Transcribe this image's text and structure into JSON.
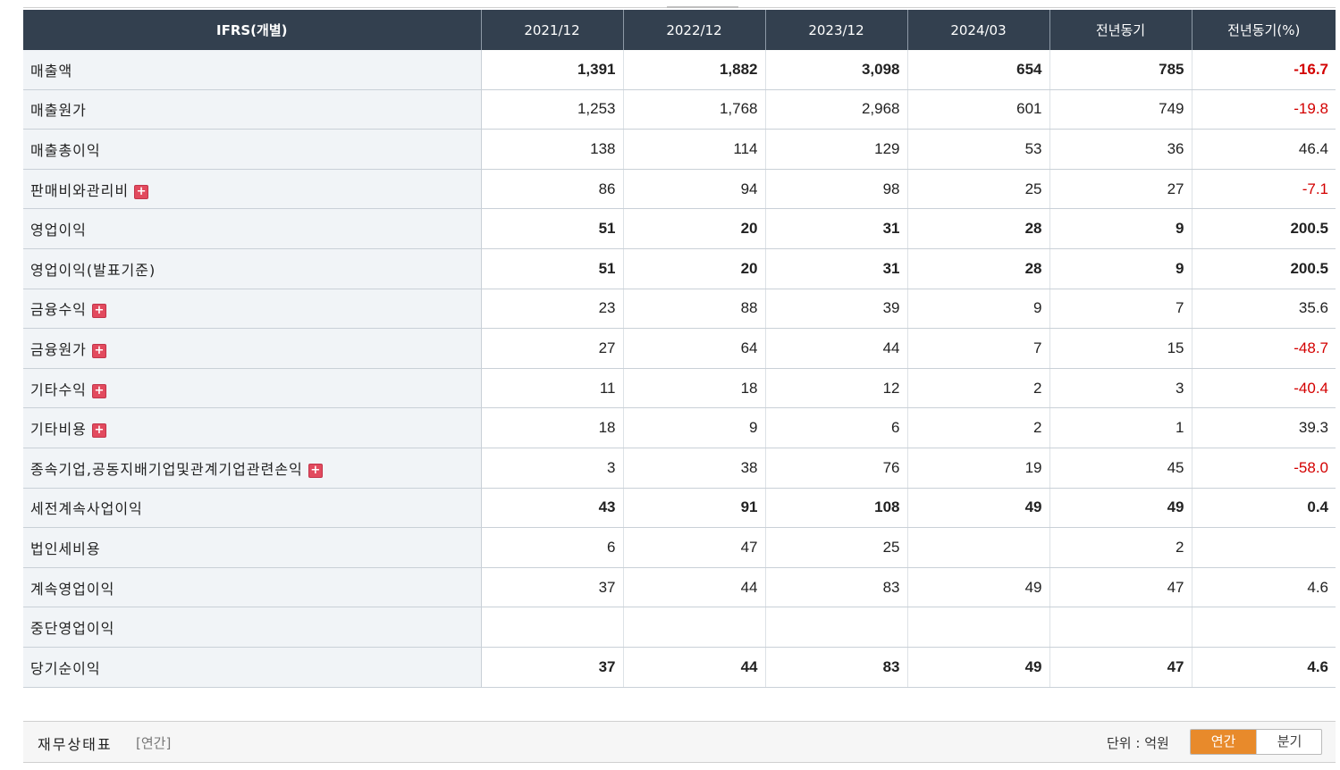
{
  "table": {
    "headers": [
      "IFRS(개별)",
      "2021/12",
      "2022/12",
      "2023/12",
      "2024/03",
      "전년동기",
      "전년동기(%)"
    ],
    "rows": [
      {
        "label": "매출액",
        "bold": true,
        "expand": false,
        "values": [
          "1,391",
          "1,882",
          "3,098",
          "654",
          "785",
          "-16.7"
        ],
        "neg": [
          false,
          false,
          false,
          false,
          false,
          true
        ]
      },
      {
        "label": "매출원가",
        "bold": false,
        "expand": false,
        "values": [
          "1,253",
          "1,768",
          "2,968",
          "601",
          "749",
          "-19.8"
        ],
        "neg": [
          false,
          false,
          false,
          false,
          false,
          true
        ]
      },
      {
        "label": "매출총이익",
        "bold": false,
        "expand": false,
        "values": [
          "138",
          "114",
          "129",
          "53",
          "36",
          "46.4"
        ],
        "neg": [
          false,
          false,
          false,
          false,
          false,
          false
        ]
      },
      {
        "label": "판매비와관리비",
        "bold": false,
        "expand": true,
        "values": [
          "86",
          "94",
          "98",
          "25",
          "27",
          "-7.1"
        ],
        "neg": [
          false,
          false,
          false,
          false,
          false,
          true
        ]
      },
      {
        "label": "영업이익",
        "bold": true,
        "expand": false,
        "values": [
          "51",
          "20",
          "31",
          "28",
          "9",
          "200.5"
        ],
        "neg": [
          false,
          false,
          false,
          false,
          false,
          false
        ]
      },
      {
        "label": "영업이익(발표기준)",
        "bold": true,
        "expand": false,
        "values": [
          "51",
          "20",
          "31",
          "28",
          "9",
          "200.5"
        ],
        "neg": [
          false,
          false,
          false,
          false,
          false,
          false
        ]
      },
      {
        "label": "금융수익",
        "bold": false,
        "expand": true,
        "values": [
          "23",
          "88",
          "39",
          "9",
          "7",
          "35.6"
        ],
        "neg": [
          false,
          false,
          false,
          false,
          false,
          false
        ]
      },
      {
        "label": "금융원가",
        "bold": false,
        "expand": true,
        "values": [
          "27",
          "64",
          "44",
          "7",
          "15",
          "-48.7"
        ],
        "neg": [
          false,
          false,
          false,
          false,
          false,
          true
        ]
      },
      {
        "label": "기타수익",
        "bold": false,
        "expand": true,
        "values": [
          "11",
          "18",
          "12",
          "2",
          "3",
          "-40.4"
        ],
        "neg": [
          false,
          false,
          false,
          false,
          false,
          true
        ]
      },
      {
        "label": "기타비용",
        "bold": false,
        "expand": true,
        "values": [
          "18",
          "9",
          "6",
          "2",
          "1",
          "39.3"
        ],
        "neg": [
          false,
          false,
          false,
          false,
          false,
          false
        ]
      },
      {
        "label": "종속기업,공동지배기업및관계기업관련손익",
        "bold": false,
        "expand": true,
        "values": [
          "3",
          "38",
          "76",
          "19",
          "45",
          "-58.0"
        ],
        "neg": [
          false,
          false,
          false,
          false,
          false,
          true
        ]
      },
      {
        "label": "세전계속사업이익",
        "bold": true,
        "expand": false,
        "values": [
          "43",
          "91",
          "108",
          "49",
          "49",
          "0.4"
        ],
        "neg": [
          false,
          false,
          false,
          false,
          false,
          false
        ]
      },
      {
        "label": "법인세비용",
        "bold": false,
        "expand": false,
        "values": [
          "6",
          "47",
          "25",
          "",
          "2",
          ""
        ],
        "neg": [
          false,
          false,
          false,
          false,
          false,
          false
        ]
      },
      {
        "label": "계속영업이익",
        "bold": false,
        "expand": false,
        "values": [
          "37",
          "44",
          "83",
          "49",
          "47",
          "4.6"
        ],
        "neg": [
          false,
          false,
          false,
          false,
          false,
          false
        ]
      },
      {
        "label": "중단영업이익",
        "bold": false,
        "expand": false,
        "values": [
          "",
          "",
          "",
          "",
          "",
          ""
        ],
        "neg": [
          false,
          false,
          false,
          false,
          false,
          false
        ]
      },
      {
        "label": "당기순이익",
        "bold": true,
        "expand": false,
        "values": [
          "37",
          "44",
          "83",
          "49",
          "47",
          "4.6"
        ],
        "neg": [
          false,
          false,
          false,
          false,
          false,
          false
        ]
      }
    ],
    "expand_icon": "plus-icon",
    "negative_color": "#d30000"
  },
  "footer": {
    "title": "재무상태표",
    "subtitle": "[연간]",
    "unit": "단위 : 억원",
    "toggle": {
      "annual": "연간",
      "quarter": "분기",
      "selected": "annual"
    }
  }
}
